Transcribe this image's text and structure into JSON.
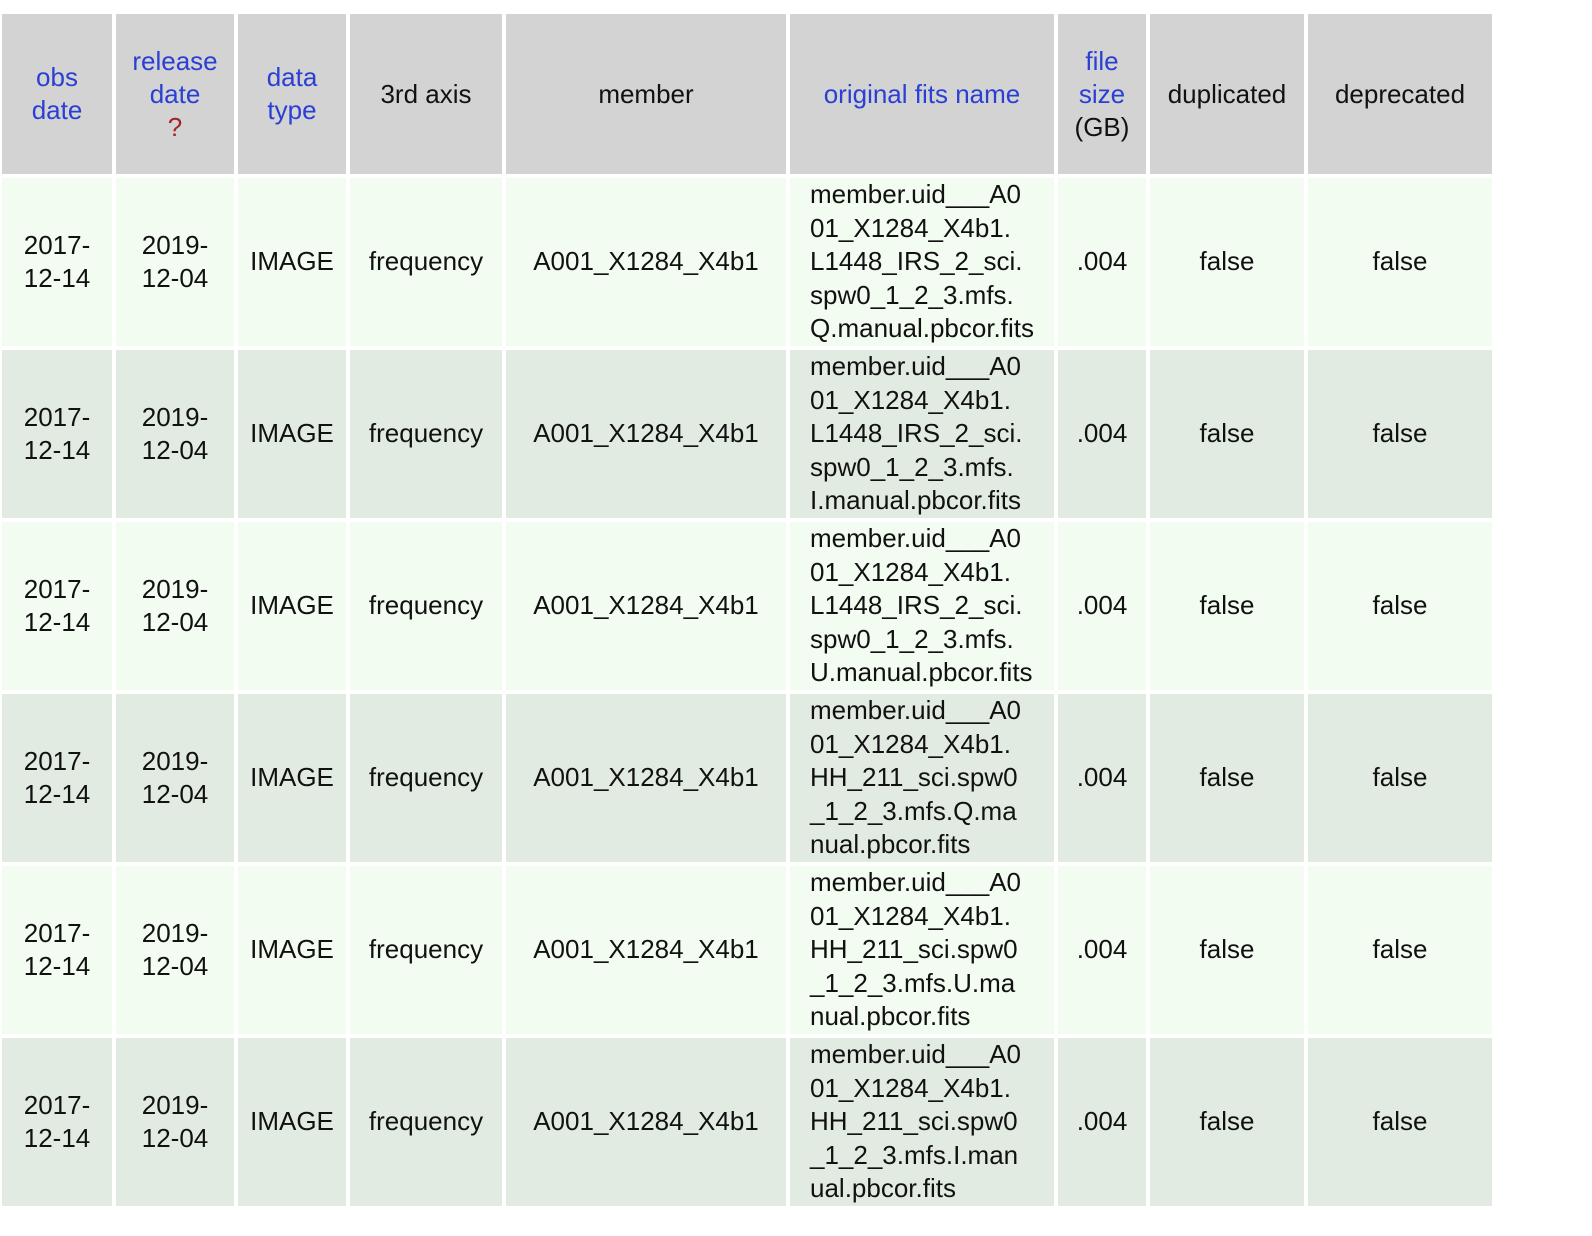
{
  "table": {
    "headers": {
      "obs_date": [
        "obs",
        "date"
      ],
      "release_date": [
        "release",
        "date"
      ],
      "release_help": "?",
      "data_type": [
        "data",
        "type"
      ],
      "third_axis": "3rd axis",
      "member": "member",
      "original_fits_name": "original fits name",
      "file_size": [
        "file",
        "size"
      ],
      "file_size_unit": "(GB)",
      "duplicated": "duplicated",
      "deprecated": "deprecated"
    },
    "rows": [
      {
        "obs_date": [
          "2017-",
          "12-14"
        ],
        "release_date": [
          "2019-",
          "12-04"
        ],
        "data_type": "IMAGE",
        "third_axis": "frequency",
        "member": "A001_X1284_X4b1",
        "fits_name": [
          "member.uid___A0",
          "01_X1284_X4b1.",
          "L1448_IRS_2_sci.",
          "spw0_1_2_3.mfs.",
          "Q.manual.pbcor.fits"
        ],
        "file_size": ".004",
        "duplicated": "false",
        "deprecated": "false"
      },
      {
        "obs_date": [
          "2017-",
          "12-14"
        ],
        "release_date": [
          "2019-",
          "12-04"
        ],
        "data_type": "IMAGE",
        "third_axis": "frequency",
        "member": "A001_X1284_X4b1",
        "fits_name": [
          "member.uid___A0",
          "01_X1284_X4b1.",
          "L1448_IRS_2_sci.",
          "spw0_1_2_3.mfs.",
          "I.manual.pbcor.fits"
        ],
        "file_size": ".004",
        "duplicated": "false",
        "deprecated": "false"
      },
      {
        "obs_date": [
          "2017-",
          "12-14"
        ],
        "release_date": [
          "2019-",
          "12-04"
        ],
        "data_type": "IMAGE",
        "third_axis": "frequency",
        "member": "A001_X1284_X4b1",
        "fits_name": [
          "member.uid___A0",
          "01_X1284_X4b1.",
          "L1448_IRS_2_sci.",
          "spw0_1_2_3.mfs.",
          "U.manual.pbcor.fits"
        ],
        "file_size": ".004",
        "duplicated": "false",
        "deprecated": "false"
      },
      {
        "obs_date": [
          "2017-",
          "12-14"
        ],
        "release_date": [
          "2019-",
          "12-04"
        ],
        "data_type": "IMAGE",
        "third_axis": "frequency",
        "member": "A001_X1284_X4b1",
        "fits_name": [
          "member.uid___A0",
          "01_X1284_X4b1.",
          "HH_211_sci.spw0",
          "_1_2_3.mfs.Q.ma",
          "nual.pbcor.fits"
        ],
        "file_size": ".004",
        "duplicated": "false",
        "deprecated": "false"
      },
      {
        "obs_date": [
          "2017-",
          "12-14"
        ],
        "release_date": [
          "2019-",
          "12-04"
        ],
        "data_type": "IMAGE",
        "third_axis": "frequency",
        "member": "A001_X1284_X4b1",
        "fits_name": [
          "member.uid___A0",
          "01_X1284_X4b1.",
          "HH_211_sci.spw0",
          "_1_2_3.mfs.U.ma",
          "nual.pbcor.fits"
        ],
        "file_size": ".004",
        "duplicated": "false",
        "deprecated": "false"
      },
      {
        "obs_date": [
          "2017-",
          "12-14"
        ],
        "release_date": [
          "2019-",
          "12-04"
        ],
        "data_type": "IMAGE",
        "third_axis": "frequency",
        "member": "A001_X1284_X4b1",
        "fits_name": [
          "member.uid___A0",
          "01_X1284_X4b1.",
          "HH_211_sci.spw0",
          "_1_2_3.mfs.I.man",
          "ual.pbcor.fits"
        ],
        "file_size": ".004",
        "duplicated": "false",
        "deprecated": "false"
      }
    ]
  }
}
